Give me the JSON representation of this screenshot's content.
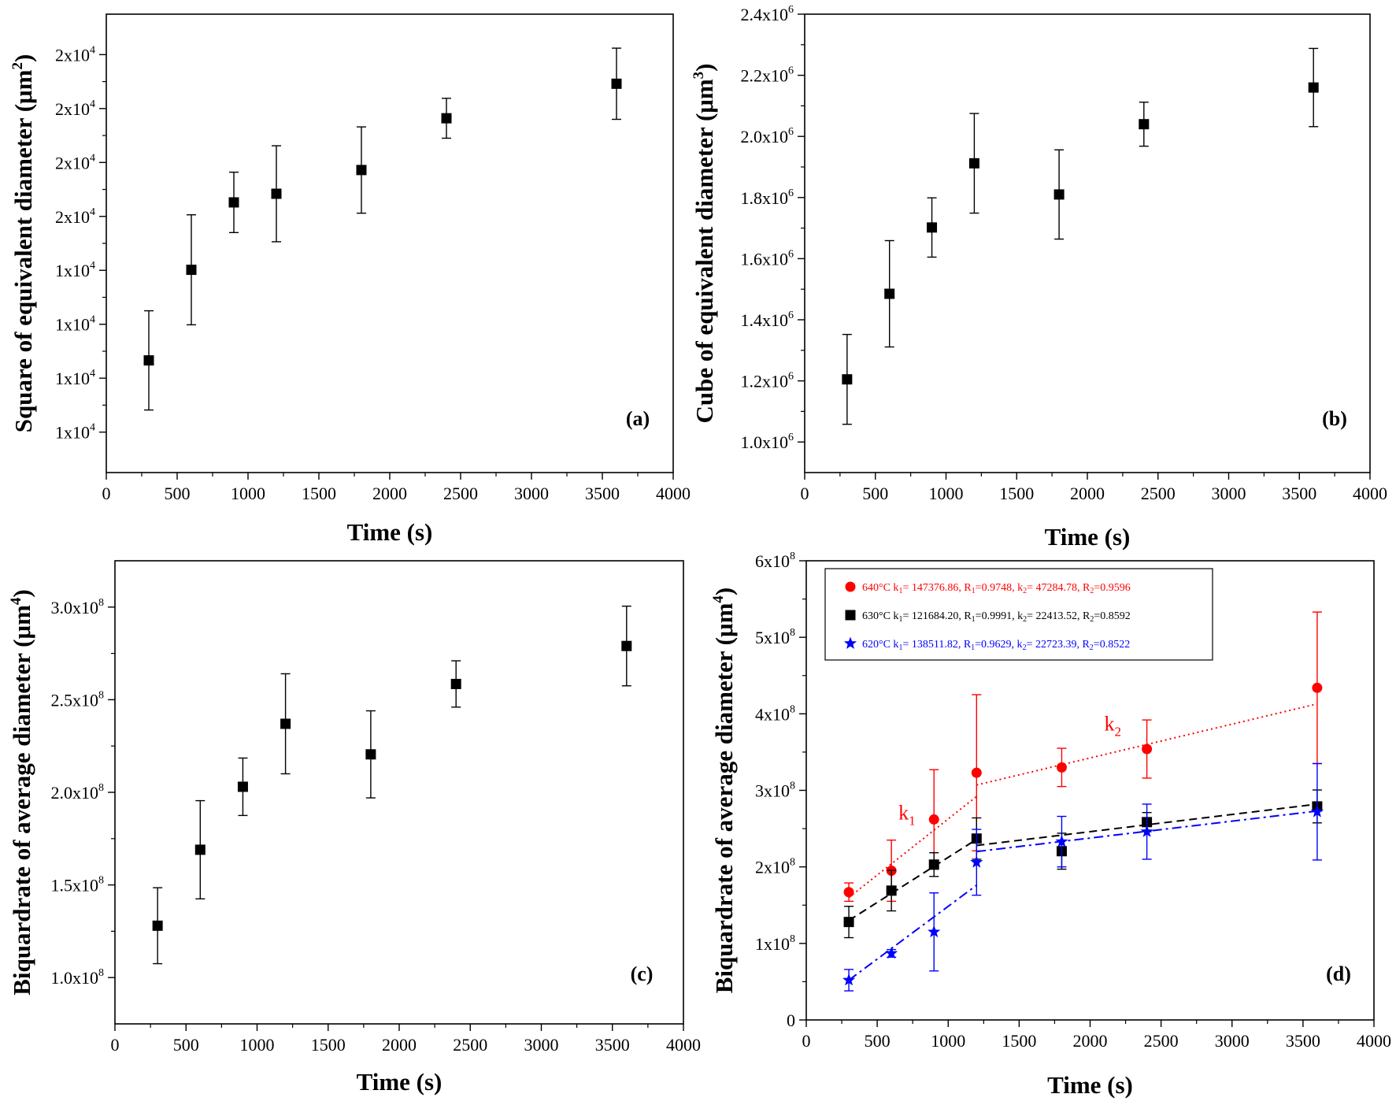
{
  "chart_data": [
    {
      "id": "a",
      "type": "scatter",
      "panel_label": "(a)",
      "xlabel": "Time (s)",
      "ylabel_main": "Square of equivalent diameter (",
      "ylabel_unit": "μm",
      "ylabel_power": "2",
      "xlim": [
        0,
        4000
      ],
      "xticks": [
        0,
        500,
        1000,
        1500,
        2000,
        2500,
        3000,
        3500,
        4000
      ],
      "ylim": [
        10250,
        18750
      ],
      "yticks": [
        11000,
        12000,
        13000,
        14000,
        15000,
        16000,
        17000,
        18000
      ],
      "ytick_labels": [
        {
          "base": "1x10",
          "exp": "4"
        },
        {
          "base": "1x10",
          "exp": "4"
        },
        {
          "base": "1x10",
          "exp": "4"
        },
        {
          "base": "1x10",
          "exp": "4"
        },
        {
          "base": "2x10",
          "exp": "4"
        },
        {
          "base": "2x10",
          "exp": "4"
        },
        {
          "base": "2x10",
          "exp": "4"
        },
        {
          "base": "2x10",
          "exp": "4"
        }
      ],
      "series": [
        {
          "color": "#000000",
          "marker": "square",
          "x": [
            300,
            600,
            900,
            1200,
            1800,
            2400,
            3600
          ],
          "y": [
            12330,
            14010,
            15260,
            15420,
            15860,
            16820,
            17460
          ],
          "err": [
            920,
            1020,
            560,
            890,
            800,
            370,
            660
          ]
        }
      ]
    },
    {
      "id": "b",
      "type": "scatter",
      "panel_label": "(b)",
      "xlabel": "Time (s)",
      "ylabel_main": "Cube of equivalent diameter (",
      "ylabel_unit": "μm",
      "ylabel_power": "3",
      "xlim": [
        0,
        4000
      ],
      "xticks": [
        0,
        500,
        1000,
        1500,
        2000,
        2500,
        3000,
        3500,
        4000
      ],
      "ylim": [
        900000,
        2400000
      ],
      "yticks": [
        1000000,
        1200000,
        1400000,
        1600000,
        1800000,
        2000000,
        2200000,
        2400000
      ],
      "ytick_labels": [
        {
          "base": "1.0x10",
          "exp": "6"
        },
        {
          "base": "1.2x10",
          "exp": "6"
        },
        {
          "base": "1.4x10",
          "exp": "6"
        },
        {
          "base": "1.6x10",
          "exp": "6"
        },
        {
          "base": "1.8x10",
          "exp": "6"
        },
        {
          "base": "2.0x10",
          "exp": "6"
        },
        {
          "base": "2.2x10",
          "exp": "6"
        },
        {
          "base": "2.4x10",
          "exp": "6"
        }
      ],
      "series": [
        {
          "color": "#000000",
          "marker": "square",
          "x": [
            300,
            600,
            900,
            1200,
            1800,
            2400,
            3600
          ],
          "y": [
            1205000,
            1485000,
            1702000,
            1912000,
            1810000,
            2040000,
            2160000
          ],
          "err": [
            147000,
            174000,
            97000,
            163000,
            146000,
            72000,
            128000
          ]
        }
      ]
    },
    {
      "id": "c",
      "type": "scatter",
      "panel_label": "(c)",
      "xlabel": "Time (s)",
      "ylabel_main": "Biquardrate of average diameter (",
      "ylabel_unit": "μm",
      "ylabel_power": "4",
      "xlim": [
        0,
        4000
      ],
      "xticks": [
        0,
        500,
        1000,
        1500,
        2000,
        2500,
        3000,
        3500,
        4000
      ],
      "ylim": [
        75000000,
        325000000
      ],
      "yticks": [
        100000000,
        150000000,
        200000000,
        250000000,
        300000000
      ],
      "ytick_labels": [
        {
          "base": "1.0x10",
          "exp": "8"
        },
        {
          "base": "1.5x10",
          "exp": "8"
        },
        {
          "base": "2.0x10",
          "exp": "8"
        },
        {
          "base": "2.5x10",
          "exp": "8"
        },
        {
          "base": "3.0x10",
          "exp": "8"
        }
      ],
      "series": [
        {
          "color": "#000000",
          "marker": "square",
          "x": [
            300,
            600,
            900,
            1200,
            1800,
            2400,
            3600
          ],
          "y": [
            128000000,
            169000000,
            203000000,
            237000000,
            220500000,
            258500000,
            279000000
          ],
          "err": [
            20500000,
            26500000,
            15500000,
            27000000,
            23500000,
            12500000,
            21500000
          ]
        }
      ]
    },
    {
      "id": "d",
      "type": "scatter",
      "panel_label": "(d)",
      "xlabel": "Time (s)",
      "ylabel_main": "Biquardrate of average diameter (",
      "ylabel_unit": "μm",
      "ylabel_power": "4",
      "xlim": [
        0,
        4000
      ],
      "xticks": [
        0,
        500,
        1000,
        1500,
        2000,
        2500,
        3000,
        3500,
        4000
      ],
      "ylim": [
        0,
        600000000
      ],
      "yticks": [
        0,
        100000000,
        200000000,
        300000000,
        400000000,
        500000000,
        600000000
      ],
      "ytick_labels": [
        {
          "base": "0",
          "exp": ""
        },
        {
          "base": "1x10",
          "exp": "8"
        },
        {
          "base": "2x10",
          "exp": "8"
        },
        {
          "base": "3x10",
          "exp": "8"
        },
        {
          "base": "4x10",
          "exp": "8"
        },
        {
          "base": "5x10",
          "exp": "8"
        },
        {
          "base": "6x10",
          "exp": "8"
        }
      ],
      "annotations": [
        {
          "main": "k",
          "sub": "1",
          "x": 650,
          "y": 262000000,
          "color": "#ff0000"
        },
        {
          "main": "k",
          "sub": "2",
          "x": 2100,
          "y": 378000000,
          "color": "#ff0000"
        }
      ],
      "series": [
        {
          "name": "640°C",
          "color": "#ff0000",
          "marker": "circle",
          "dash": "2,4",
          "legend": [
            {
              "t": "640°C  k"
            },
            {
              "t": "1",
              "sub": true
            },
            {
              "t": "=  147376.86, R"
            },
            {
              "t": "1",
              "sub": true
            },
            {
              "t": "=0.9748,  k"
            },
            {
              "t": "2",
              "sub": true
            },
            {
              "t": "=  47284.78, R"
            },
            {
              "t": "2",
              "sub": true
            },
            {
              "t": "=0.9596"
            }
          ],
          "x": [
            300,
            600,
            900,
            1200,
            1800,
            2400,
            3600
          ],
          "y": [
            167000000,
            195000000,
            262000000,
            323000000,
            330000000,
            354000000,
            434000000
          ],
          "err": [
            12000000,
            40000000,
            65000000,
            102000000,
            25000000,
            38000000,
            99000000
          ],
          "fit": [
            [
              [
                300,
                160000000
              ],
              [
                1200,
                292000000
              ]
            ],
            [
              [
                1200,
                307000000
              ],
              [
                3600,
                413000000
              ]
            ]
          ]
        },
        {
          "name": "630°C",
          "color": "#000000",
          "marker": "square",
          "dash": "10,6",
          "legend": [
            {
              "t": "630°C  k"
            },
            {
              "t": "1",
              "sub": true
            },
            {
              "t": "=  121684.20, R"
            },
            {
              "t": "1",
              "sub": true
            },
            {
              "t": "=0.9991,  k"
            },
            {
              "t": "2",
              "sub": true
            },
            {
              "t": "=  22413.52, R"
            },
            {
              "t": "2",
              "sub": true
            },
            {
              "t": "=0.8592"
            }
          ],
          "x": [
            300,
            600,
            900,
            1200,
            1800,
            2400,
            3600
          ],
          "y": [
            128000000,
            169000000,
            203000000,
            237000000,
            220500000,
            258500000,
            279000000
          ],
          "err": [
            20500000,
            26500000,
            15500000,
            27000000,
            23500000,
            12500000,
            21500000
          ],
          "fit": [
            [
              [
                300,
                130000000
              ],
              [
                1200,
                236000000
              ]
            ],
            [
              [
                1200,
                228000000
              ],
              [
                3600,
                282000000
              ]
            ]
          ]
        },
        {
          "name": "620°C",
          "color": "#0000ff",
          "marker": "star",
          "dash": "12,5,3,5",
          "legend": [
            {
              "t": "620°C  k"
            },
            {
              "t": "1",
              "sub": true
            },
            {
              "t": "=  138511.82, R"
            },
            {
              "t": "1",
              "sub": true
            },
            {
              "t": "=0.9629,  k"
            },
            {
              "t": "2",
              "sub": true
            },
            {
              "t": "=  22723.39, R"
            },
            {
              "t": "2",
              "sub": true
            },
            {
              "t": "=0.8522"
            }
          ],
          "x": [
            300,
            600,
            900,
            1200,
            1800,
            2400,
            3600
          ],
          "y": [
            52000000,
            87000000,
            115000000,
            206000000,
            233000000,
            246000000,
            272000000
          ],
          "err": [
            14000000,
            5000000,
            51000000,
            43000000,
            33000000,
            36000000,
            63000000
          ],
          "fit": [
            [
              [
                300,
                52000000
              ],
              [
                1200,
                176000000
              ]
            ],
            [
              [
                1200,
                220000000
              ],
              [
                3600,
                273000000
              ]
            ]
          ]
        }
      ]
    }
  ]
}
